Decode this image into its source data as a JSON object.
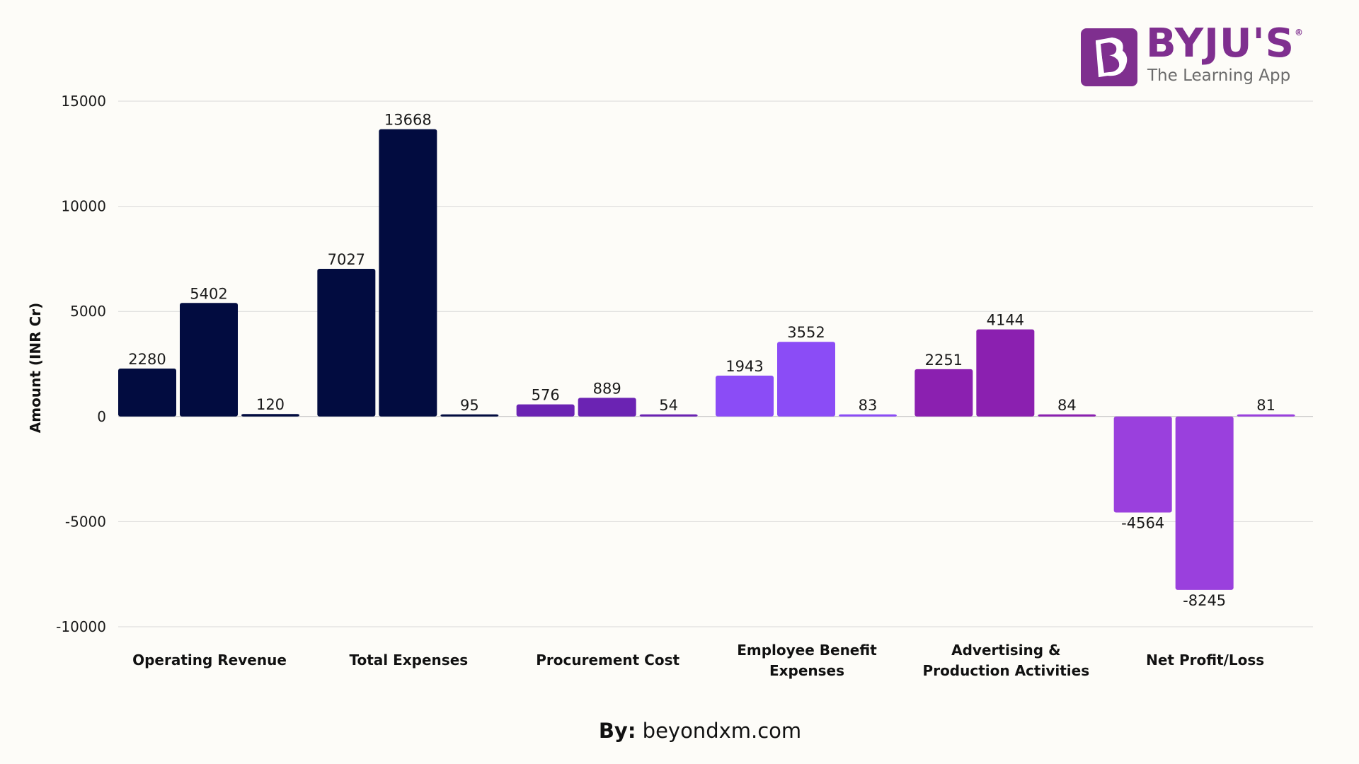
{
  "chart_data": {
    "type": "bar",
    "title": "",
    "xlabel": "",
    "ylabel": "Amount (INR Cr)",
    "ylim": [
      -10000,
      15000
    ],
    "yticks": [
      -10000,
      -5000,
      0,
      5000,
      10000,
      15000
    ],
    "grid": true,
    "legend": "none",
    "categories": [
      [
        "Operating Revenue"
      ],
      [
        "Total Expenses"
      ],
      [
        "Procurement Cost"
      ],
      [
        "Employee Benefit",
        "Expenses"
      ],
      [
        "Advertising &",
        "Production Activities"
      ],
      [
        "Net Profit/Loss"
      ]
    ],
    "series": [
      {
        "values": [
          2280,
          7027,
          576,
          1943,
          2251,
          -4564
        ]
      },
      {
        "values": [
          5402,
          13668,
          889,
          3552,
          4144,
          -8245
        ]
      },
      {
        "values": [
          120,
          95,
          54,
          83,
          84,
          81
        ]
      }
    ],
    "category_colors": [
      "#020c40",
      "#020c40",
      "#6b23b3",
      "#8b4cf6",
      "#8b20b0",
      "#9a40dd"
    ]
  },
  "logo": {
    "name": "BYJU'S",
    "registered_mark": "®",
    "tagline": "The Learning App",
    "color": "#7f2f8f"
  },
  "credit": {
    "prefix": "By:",
    "site": "beyondxm.com"
  }
}
